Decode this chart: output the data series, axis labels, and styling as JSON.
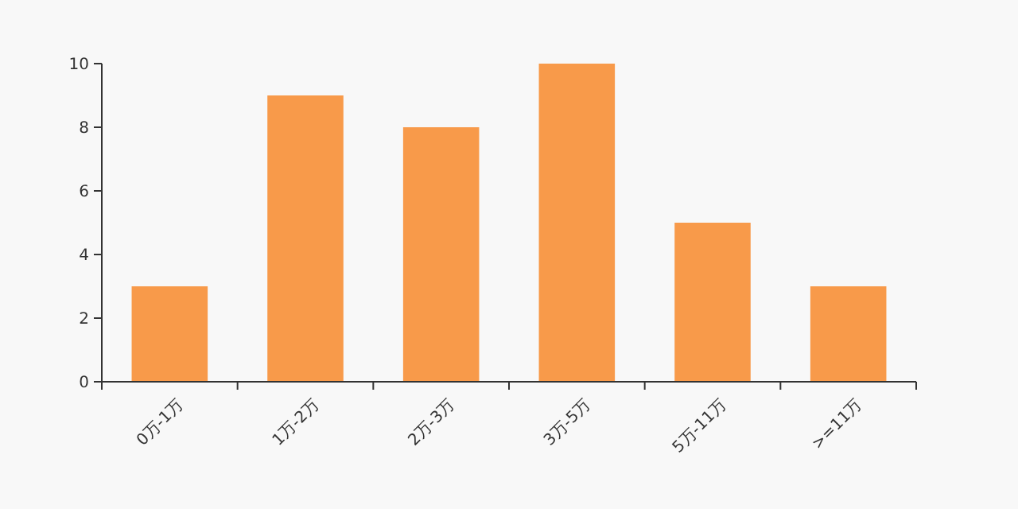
{
  "chart_data": {
    "type": "bar",
    "categories": [
      "0万-1万",
      "1万-2万",
      "2万-3万",
      "3万-5万",
      "5万-11万",
      ">=11万"
    ],
    "values": [
      3,
      9,
      8,
      10,
      5,
      3
    ],
    "color": "#f89a4a",
    "ylim": [
      0,
      10
    ],
    "yticks": [
      0,
      2,
      4,
      6,
      8,
      10
    ],
    "grid": false
  }
}
